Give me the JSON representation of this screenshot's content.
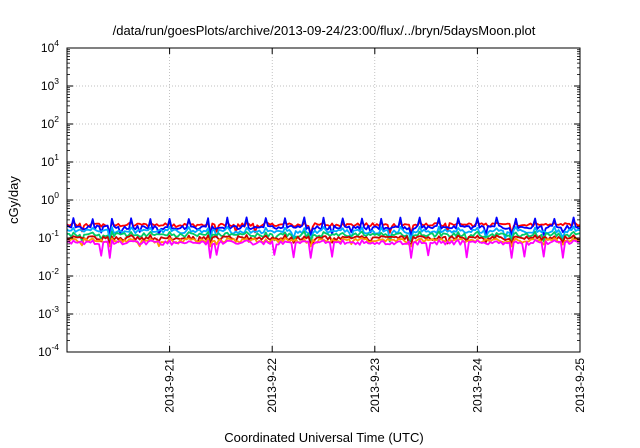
{
  "chart_data": {
    "type": "line",
    "title": "/data/run/goesPlots/archive/2013-09-24/23:00/flux/../bryn/5daysMoon.plot",
    "xlabel": "Coordinated Universal Time (UTC)",
    "ylabel": "cGy/day",
    "y_scale": "log",
    "ylim": [
      0.0001,
      10000
    ],
    "y_ticks": [
      {
        "base": "10",
        "exp": "-4",
        "value": 0.0001
      },
      {
        "base": "10",
        "exp": "-3",
        "value": 0.001
      },
      {
        "base": "10",
        "exp": "-2",
        "value": 0.01
      },
      {
        "base": "10",
        "exp": "-1",
        "value": 0.1
      },
      {
        "base": "10",
        "exp": "0",
        "value": 1
      },
      {
        "base": "10",
        "exp": "1",
        "value": 10
      },
      {
        "base": "10",
        "exp": "2",
        "value": 100
      },
      {
        "base": "10",
        "exp": "3",
        "value": 1000
      },
      {
        "base": "10",
        "exp": "4",
        "value": 10000
      }
    ],
    "xlim": [
      "2013-09-20",
      "2013-09-25"
    ],
    "x_ticks": [
      "2013-9-21",
      "2013-9-22",
      "2013-9-23",
      "2013-9-24",
      "2013-9-25"
    ],
    "grid": true,
    "legend": "none",
    "series": [
      {
        "color": "#ff0000",
        "level": 0.22,
        "min": 0.13,
        "max": 0.27
      },
      {
        "color": "#0000ff",
        "level": 0.19,
        "min": 0.12,
        "max": 0.35
      },
      {
        "color": "#00aaff",
        "level": 0.15,
        "min": 0.09,
        "max": 0.2
      },
      {
        "color": "#00cc66",
        "level": 0.12,
        "min": 0.08,
        "max": 0.15
      },
      {
        "color": "#cc0000",
        "level": 0.1,
        "min": 0.07,
        "max": 0.12
      },
      {
        "color": "#ff9900",
        "level": 0.085,
        "min": 0.06,
        "max": 0.1
      },
      {
        "color": "#ff00ff",
        "level": 0.075,
        "min": 0.03,
        "max": 0.09
      }
    ]
  }
}
